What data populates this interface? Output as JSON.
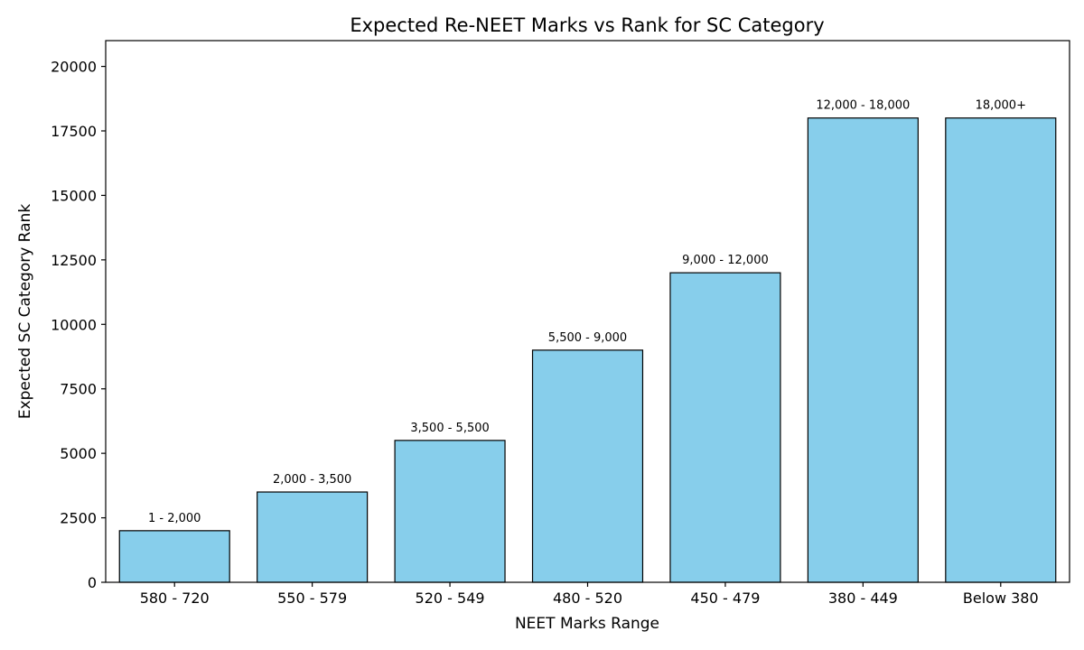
{
  "chart_data": {
    "type": "bar",
    "title": "Expected Re-NEET Marks vs Rank for SC Category",
    "xlabel": "NEET Marks Range",
    "ylabel": "Expected SC Category Rank",
    "categories": [
      "580 - 720",
      "550 - 579",
      "520 - 549",
      "480 - 520",
      "450 - 479",
      "380 - 449",
      "Below 380"
    ],
    "values": [
      2000,
      3500,
      5500,
      9000,
      12000,
      18000,
      18000
    ],
    "data_labels": [
      "1 - 2,000",
      "2,000 - 3,500",
      "3,500 - 5,500",
      "5,500 - 9,000",
      "9,000 - 12,000",
      "12,000 - 18,000",
      "18,000+"
    ],
    "ylim": [
      0,
      21000
    ],
    "yticks": [
      0,
      2500,
      5000,
      7500,
      10000,
      12500,
      15000,
      17500,
      20000
    ],
    "bar_color": "#87ceeb",
    "edge_color": "#000000",
    "grid": false,
    "legend": "none"
  }
}
